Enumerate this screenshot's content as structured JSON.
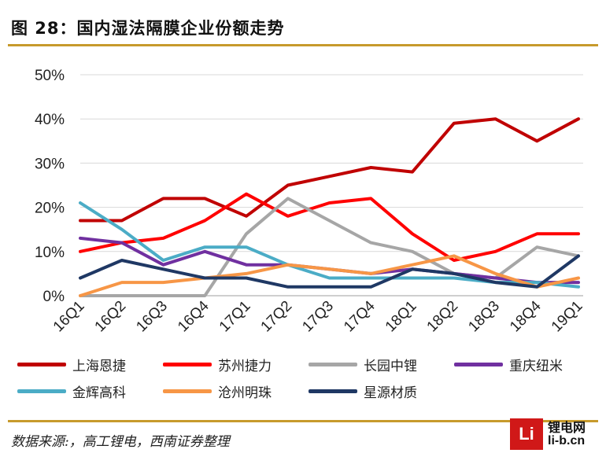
{
  "header": {
    "title": "图 28：国内湿法隔膜企业份额走势"
  },
  "footer": {
    "source": "数据来源:，高工锂电，西南证券整理"
  },
  "watermark": {
    "logo": "Li",
    "name": "锂电网",
    "url": "li-b.cn"
  },
  "chart_data": {
    "type": "line",
    "title": "图 28：国内湿法隔膜企业份额走势",
    "xlabel": "",
    "ylabel": "",
    "ylim": [
      0,
      50
    ],
    "yticks": [
      "0%",
      "10%",
      "20%",
      "30%",
      "40%",
      "50%"
    ],
    "grid": true,
    "legend_position": "bottom",
    "categories": [
      "16Q1",
      "16Q2",
      "16Q3",
      "16Q4",
      "17Q1",
      "17Q2",
      "17Q3",
      "17Q4",
      "18Q1",
      "18Q2",
      "18Q3",
      "18Q4",
      "19Q1"
    ],
    "series": [
      {
        "name": "上海恩捷",
        "color": "#c00000",
        "values": [
          17,
          17,
          22,
          22,
          18,
          25,
          27,
          29,
          28,
          39,
          40,
          35,
          40
        ]
      },
      {
        "name": "苏州捷力",
        "color": "#ff0000",
        "values": [
          10,
          12,
          13,
          17,
          23,
          18,
          21,
          22,
          14,
          8,
          10,
          14,
          14
        ]
      },
      {
        "name": "长园中锂",
        "color": "#a6a6a6",
        "values": [
          0,
          0,
          0,
          0,
          14,
          22,
          17,
          12,
          10,
          5,
          4,
          11,
          9
        ]
      },
      {
        "name": "重庆纽米",
        "color": "#7030a0",
        "values": [
          13,
          12,
          7,
          10,
          7,
          7,
          6,
          5,
          6,
          5,
          4,
          3,
          3
        ]
      },
      {
        "name": "金辉高科",
        "color": "#4bacc6",
        "values": [
          21,
          15,
          8,
          11,
          11,
          7,
          4,
          4,
          4,
          4,
          3,
          3,
          2
        ]
      },
      {
        "name": "沧州明珠",
        "color": "#f79646",
        "values": [
          0,
          3,
          3,
          4,
          5,
          7,
          6,
          5,
          7,
          9,
          5,
          2,
          4
        ]
      },
      {
        "name": "星源材质",
        "color": "#1f3864",
        "values": [
          4,
          8,
          6,
          4,
          4,
          2,
          2,
          2,
          6,
          5,
          3,
          2,
          9
        ]
      }
    ]
  }
}
